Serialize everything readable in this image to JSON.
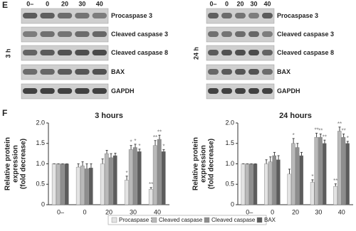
{
  "figure": {
    "panel_e_label": "E",
    "panel_f_label": "F",
    "lanes": [
      "0–",
      "0",
      "20",
      "30",
      "40"
    ],
    "blot_times": [
      "3 h",
      "24 h"
    ],
    "proteins": [
      "Procaspase 3",
      "Cleaved caspase 3",
      "Cleaved caspase 8",
      "BAX",
      "GAPDH"
    ]
  },
  "chart_data": [
    {
      "type": "bar",
      "title": "3 hours",
      "ylabel": [
        "Relative protein",
        "expression",
        "(fold decrease)"
      ],
      "categories": [
        "0–",
        "0",
        "20",
        "30",
        "40"
      ],
      "ylim": [
        0,
        2
      ],
      "yticks": [
        0,
        0.5,
        {
          "value": 1,
          "label": "1.0"
        },
        1.5,
        {
          "value": 2,
          "label": "2.0"
        }
      ],
      "series": [
        {
          "name": "Procaspase 3",
          "color": "#e3e3e3",
          "values": [
            1,
            0.92,
            1.0,
            0.6,
            0.38
          ],
          "errors": [
            0,
            0.08,
            0.12,
            0.1,
            0.04
          ],
          "significance": [
            null,
            null,
            null,
            "*",
            "**"
          ]
        },
        {
          "name": "Cleaved caspase 3",
          "color": "#b9b9b9",
          "values": [
            1,
            0.95,
            1.25,
            1.35,
            1.45
          ],
          "errors": [
            0,
            0.1,
            0.08,
            0.1,
            0.12
          ],
          "significance": [
            null,
            null,
            null,
            "*",
            "**"
          ]
        },
        {
          "name": "Cleaved caspase 8",
          "color": "#8e8e8e",
          "values": [
            1,
            0.88,
            1.15,
            1.4,
            1.6
          ],
          "errors": [
            0,
            0.12,
            0.1,
            0.08,
            0.1
          ],
          "significance": [
            null,
            null,
            null,
            "*",
            "**"
          ]
        },
        {
          "name": "BAX",
          "color": "#5c5c5c",
          "values": [
            1,
            0.9,
            1.2,
            1.3,
            1.3
          ],
          "errors": [
            0,
            0.1,
            0.06,
            0.06,
            0.05
          ],
          "significance": [
            null,
            null,
            null,
            "*",
            "*"
          ]
        }
      ]
    },
    {
      "type": "bar",
      "title": "24 hours",
      "ylabel": [
        "Relative protein",
        "expression",
        "(fold decrease)"
      ],
      "categories": [
        "0–",
        "0",
        "20",
        "30",
        "40"
      ],
      "ylim": [
        0,
        2
      ],
      "yticks": [
        0,
        0.5,
        {
          "value": 1,
          "label": "1.0"
        },
        1.5,
        {
          "value": 2,
          "label": "2.0"
        }
      ],
      "series": [
        {
          "name": "Procaspase 3",
          "color": "#e3e3e3",
          "values": [
            1,
            1.0,
            0.75,
            0.55,
            0.45
          ],
          "errors": [
            0,
            0.1,
            0.12,
            0.06,
            0.06
          ],
          "significance": [
            null,
            null,
            null,
            "*",
            "**"
          ]
        },
        {
          "name": "Cleaved caspase 3",
          "color": "#b9b9b9",
          "values": [
            1,
            1.05,
            1.5,
            1.65,
            1.8
          ],
          "errors": [
            0,
            0.12,
            0.12,
            0.1,
            0.1
          ],
          "significance": [
            null,
            null,
            "*",
            "**",
            "**"
          ]
        },
        {
          "name": "Cleaved caspase 8",
          "color": "#8e8e8e",
          "values": [
            1,
            1.2,
            1.4,
            1.65,
            1.65
          ],
          "errors": [
            0,
            0.08,
            0.1,
            0.08,
            0.08
          ],
          "significance": [
            null,
            null,
            null,
            "**",
            "**"
          ]
        },
        {
          "name": "BAX",
          "color": "#5c5c5c",
          "values": [
            1,
            1.1,
            1.2,
            1.5,
            1.5
          ],
          "errors": [
            0,
            0.1,
            0.08,
            0.08,
            0.05
          ],
          "significance": [
            null,
            null,
            null,
            "**",
            "*"
          ]
        }
      ]
    }
  ]
}
